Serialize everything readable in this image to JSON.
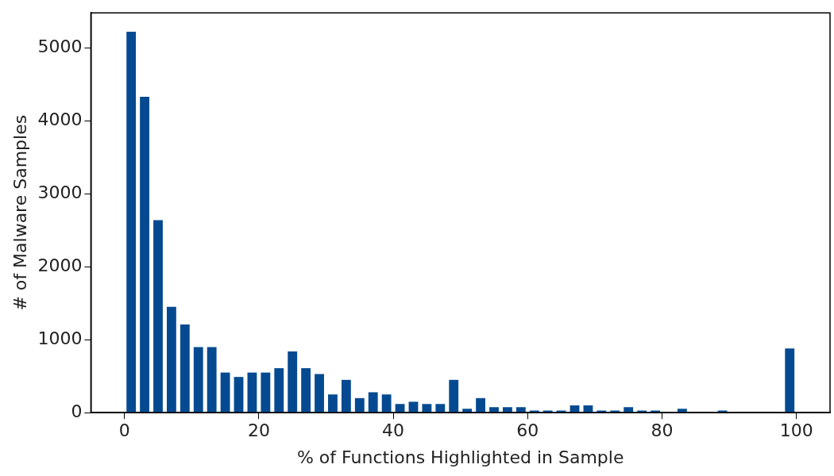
{
  "chart_data": {
    "type": "histogram",
    "xlabel": "% of Functions Highlighted in Sample",
    "ylabel": "# of Malware Samples",
    "bins": [
      0,
      2,
      4,
      6,
      8,
      10,
      12,
      14,
      16,
      18,
      20,
      22,
      24,
      26,
      28,
      30,
      32,
      34,
      36,
      38,
      40,
      42,
      44,
      46,
      48,
      50,
      52,
      54,
      56,
      58,
      60,
      62,
      64,
      66,
      68,
      70,
      72,
      74,
      76,
      78,
      80,
      82,
      84,
      86,
      88,
      90,
      92,
      94,
      96,
      98,
      100
    ],
    "values": [
      5220,
      4330,
      2640,
      1450,
      1210,
      900,
      900,
      550,
      490,
      550,
      550,
      610,
      840,
      610,
      530,
      250,
      450,
      200,
      280,
      250,
      120,
      150,
      120,
      120,
      450,
      55,
      200,
      75,
      75,
      75,
      30,
      30,
      30,
      100,
      100,
      30,
      30,
      75,
      30,
      30,
      0,
      55,
      0,
      0,
      30,
      0,
      0,
      0,
      0,
      880
    ],
    "color": "#054a91",
    "xlim": [
      -5,
      105
    ],
    "ylim": [
      0,
      5480
    ],
    "xticks": [
      0,
      20,
      40,
      60,
      80,
      100
    ],
    "yticks": [
      0,
      1000,
      2000,
      3000,
      4000,
      5000
    ],
    "grid": false,
    "legend": false
  }
}
